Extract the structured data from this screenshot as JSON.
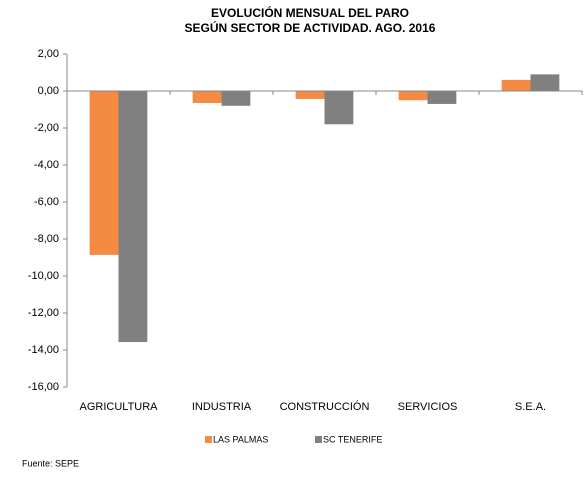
{
  "chart_data": {
    "type": "bar",
    "title": "EVOLUCIÓN MENSUAL DEL PARO",
    "subtitle": "SEGÚN SECTOR DE ACTIVIDAD. AGO. 2016",
    "categories": [
      "AGRICULTURA",
      "INDUSTRIA",
      "CONSTRUCCIÓN",
      "SERVICIOS",
      "S.E.A."
    ],
    "series": [
      {
        "name": "LAS PALMAS",
        "color": "#f58a42",
        "values": [
          -8.86,
          -0.65,
          -0.43,
          -0.5,
          0.6
        ]
      },
      {
        "name": "SC TENERIFE",
        "color": "#808080",
        "values": [
          -13.57,
          -0.8,
          -1.8,
          -0.7,
          0.9
        ]
      }
    ],
    "ylim": [
      -16,
      2
    ],
    "yticks": [
      {
        "value": 2,
        "label": "2,00"
      },
      {
        "value": 0,
        "label": "0,00"
      },
      {
        "value": -2,
        "label": "-2,00"
      },
      {
        "value": -4,
        "label": "-4,00"
      },
      {
        "value": -6,
        "label": "-6,00"
      },
      {
        "value": -8,
        "label": "-8,00"
      },
      {
        "value": -10,
        "label": "-10,00"
      },
      {
        "value": -12,
        "label": "-12,00"
      },
      {
        "value": -14,
        "label": "-14,00"
      },
      {
        "value": -16,
        "label": "-16,00"
      }
    ],
    "grid": false,
    "legend": "bottom",
    "source": "Fuente: SEPE"
  }
}
